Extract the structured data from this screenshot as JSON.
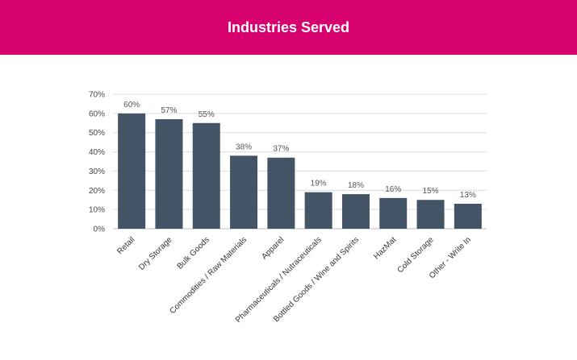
{
  "header": {
    "title": "Industries Served",
    "background_color": "#d6006f"
  },
  "chart_data": {
    "type": "bar",
    "title": "Industries Served",
    "xlabel": "",
    "ylabel": "",
    "ylim": [
      0,
      70
    ],
    "y_ticks": [
      "0%",
      "10%",
      "20%",
      "30%",
      "40%",
      "50%",
      "60%",
      "70%"
    ],
    "grid": true,
    "bar_color": "#425466",
    "categories": [
      "Retail",
      "Dry Storage",
      "Bulk Goods",
      "Commodities / Raw Materials",
      "Apparel",
      "Pharmaceuticals / Nutraceuticals",
      "Bottled Goods / Wine and Spirits",
      "HazMat",
      "Cold Storage",
      "Other - Write In"
    ],
    "values": [
      60,
      57,
      55,
      38,
      37,
      19,
      18,
      16,
      15,
      13
    ],
    "value_labels": [
      "60%",
      "57%",
      "55%",
      "38%",
      "37%",
      "19%",
      "18%",
      "16%",
      "15%",
      "13%"
    ]
  }
}
